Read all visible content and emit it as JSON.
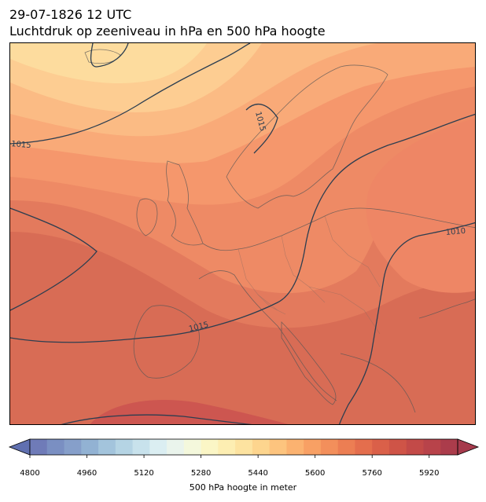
{
  "title": {
    "line1": "29-07-1826 12 UTC",
    "line2": "Luchtdruk op zeeniveau in hPa en 500 hPa hoogte"
  },
  "map": {
    "isobar_labels": [
      {
        "text": "1015",
        "name": "isobar-label-1015-west"
      },
      {
        "text": "1015",
        "name": "isobar-label-1015-norway"
      },
      {
        "text": "1015",
        "name": "isobar-label-1015-south"
      },
      {
        "text": "1010",
        "name": "isobar-label-1010-east"
      }
    ]
  },
  "colorbar": {
    "label": "500 hPa hoogte in meter",
    "ticks": [
      "4800",
      "4960",
      "5120",
      "5280",
      "5440",
      "5600",
      "5760",
      "5920"
    ],
    "min": 4800,
    "max": 6000,
    "step": 40,
    "colors": [
      "#6f7bb8",
      "#7a8fc2",
      "#869fca",
      "#92b2d3",
      "#a3c4dc",
      "#b5d4e4",
      "#c8e2ec",
      "#dbeef2",
      "#eaf4ec",
      "#f4f8dc",
      "#fbf6c6",
      "#fdeeb2",
      "#fde3a0",
      "#fdd58e",
      "#fdc47e",
      "#fbb270",
      "#f8a064",
      "#f38f5b",
      "#ec7e53",
      "#e46e4d",
      "#da6049",
      "#cf5447",
      "#c34a48",
      "#b8434a",
      "#ab3c4b"
    ],
    "under_color": "#6070b0",
    "over_color": "#a63a4c"
  },
  "chart_data": {
    "type": "heatmap",
    "title": "Luchtdruk op zeeniveau in hPa en 500 hPa hoogte",
    "subtitle": "29-07-1826 12 UTC",
    "colorbar_label": "500 hPa hoogte in meter",
    "colorbar_range": [
      4800,
      5960
    ],
    "contour_levels_shown": [
      1010,
      1015
    ]
  }
}
